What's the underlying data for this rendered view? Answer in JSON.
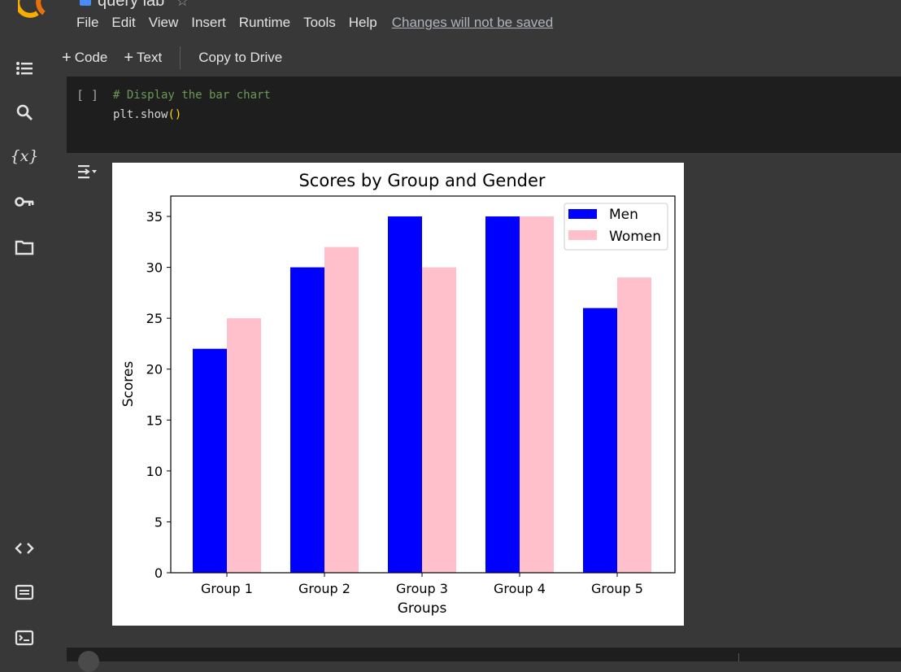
{
  "app": {
    "doc_title": "query lab",
    "menu": [
      "File",
      "Edit",
      "View",
      "Insert",
      "Runtime",
      "Tools",
      "Help"
    ],
    "unsaved_notice": "Changes will not be saved",
    "brand_colors": {
      "logo": "#f9ab00",
      "doc_icon": "#4a8cf7"
    }
  },
  "toolbar": {
    "add_code": "Code",
    "add_text": "Text",
    "copy_to_drive": "Copy to Drive"
  },
  "cell": {
    "run_label": "[ ]",
    "line1": "# Display the bar chart",
    "line2_prefix": "plt.show",
    "line2_parens": "()"
  },
  "icons": {
    "left_rail": [
      "toc-icon",
      "search-icon",
      "variables-icon",
      "secrets-key-icon",
      "folder-icon",
      "code-snippets-icon",
      "command-palette-icon",
      "terminal-icon"
    ],
    "output": "output-toggle-icon"
  },
  "chart_data": {
    "type": "bar",
    "title": "Scores by Group and Gender",
    "xlabel": "Groups",
    "ylabel": "Scores",
    "categories": [
      "Group 1",
      "Group 2",
      "Group 3",
      "Group 4",
      "Group 5"
    ],
    "series": [
      {
        "name": "Men",
        "color": "#0000ff",
        "values": [
          22,
          30,
          35,
          35,
          26
        ]
      },
      {
        "name": "Women",
        "color": "#ffc0cb",
        "values": [
          25,
          32,
          30,
          35,
          29
        ]
      }
    ],
    "ylim": [
      0,
      37
    ],
    "yticks": [
      0,
      5,
      10,
      15,
      20,
      25,
      30,
      35
    ],
    "legend": "top-right",
    "grid": false
  }
}
